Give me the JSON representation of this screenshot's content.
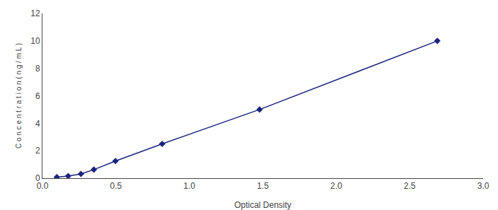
{
  "chart_data": {
    "type": "line",
    "x": [
      0.098,
      0.175,
      0.262,
      0.35,
      0.497,
      0.815,
      1.478,
      2.688
    ],
    "values": [
      0.078,
      0.156,
      0.312,
      0.625,
      1.25,
      2.5,
      5.0,
      10.0
    ],
    "color": "#1A237E",
    "marker": "diamond",
    "line_style": "solid",
    "xlabel": "Optical Density",
    "ylabel": "C o n c e n t r a t i o n ( n g / m L )",
    "xlim": [
      0,
      3
    ],
    "ylim": [
      0,
      12
    ],
    "xticks": [
      {
        "value": 0,
        "label": "0.0"
      },
      {
        "value": 0.5,
        "label": "0.5"
      },
      {
        "value": 1,
        "label": "1.0"
      },
      {
        "value": 1.5,
        "label": "1.5"
      },
      {
        "value": 2,
        "label": "2.0"
      },
      {
        "value": 2.5,
        "label": "2.5"
      },
      {
        "value": 3,
        "label": "3.0"
      }
    ],
    "yticks": [
      0,
      2,
      4,
      6,
      8,
      10,
      12
    ],
    "grid": false
  }
}
